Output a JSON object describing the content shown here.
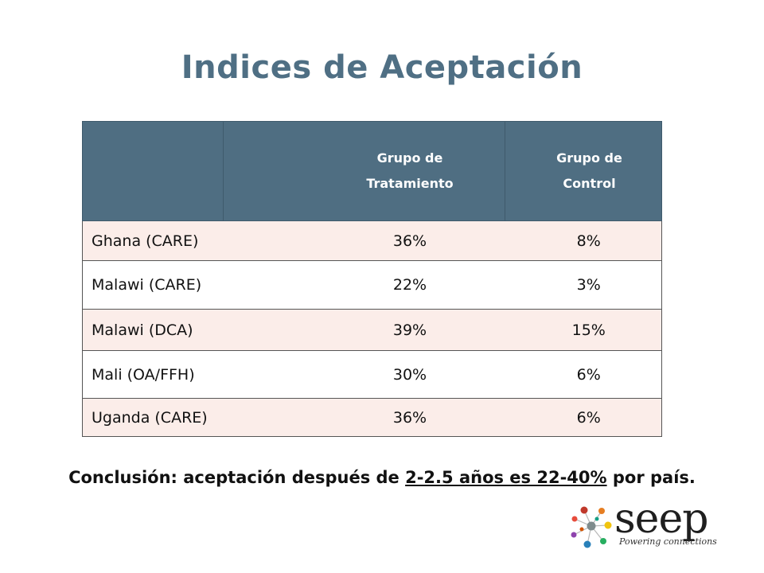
{
  "slide": {
    "title": "Indices de Aceptación"
  },
  "table": {
    "headers": {
      "blank": "",
      "treatment_line1": "Grupo de",
      "treatment_line2": "Tratamiento",
      "control_line1": "Grupo de",
      "control_line2": "Control"
    },
    "rows": [
      {
        "label": "Ghana (CARE)",
        "treatment": "36%",
        "control": "8%"
      },
      {
        "label": "Malawi (CARE)",
        "treatment": "22%",
        "control": "3%"
      },
      {
        "label": "Malawi (DCA)",
        "treatment": "39%",
        "control": "15%"
      },
      {
        "label": "Mali (OA/FFH)",
        "treatment": "30%",
        "control": "6%"
      },
      {
        "label": "Uganda (CARE)",
        "treatment": "36%",
        "control": "6%"
      }
    ],
    "colors": {
      "header_bg": "#4f6e82",
      "odd_row_bg": "#fbede9",
      "even_row_bg": "#ffffff"
    }
  },
  "conclusion": {
    "prefix": "Conclusión: aceptación después de ",
    "underlined": "2-2.5 años es 22-40%",
    "suffix": " por país."
  },
  "logo": {
    "wordmark": "seep",
    "tagline": "Powering connections",
    "icon": "seep-network-dots-icon",
    "dot_colors": [
      "#c0392b",
      "#e67e22",
      "#f1c40f",
      "#27ae60",
      "#2980b9",
      "#8e44ad",
      "#7f8c8d"
    ]
  },
  "colors": {
    "title": "#4f6f84"
  }
}
